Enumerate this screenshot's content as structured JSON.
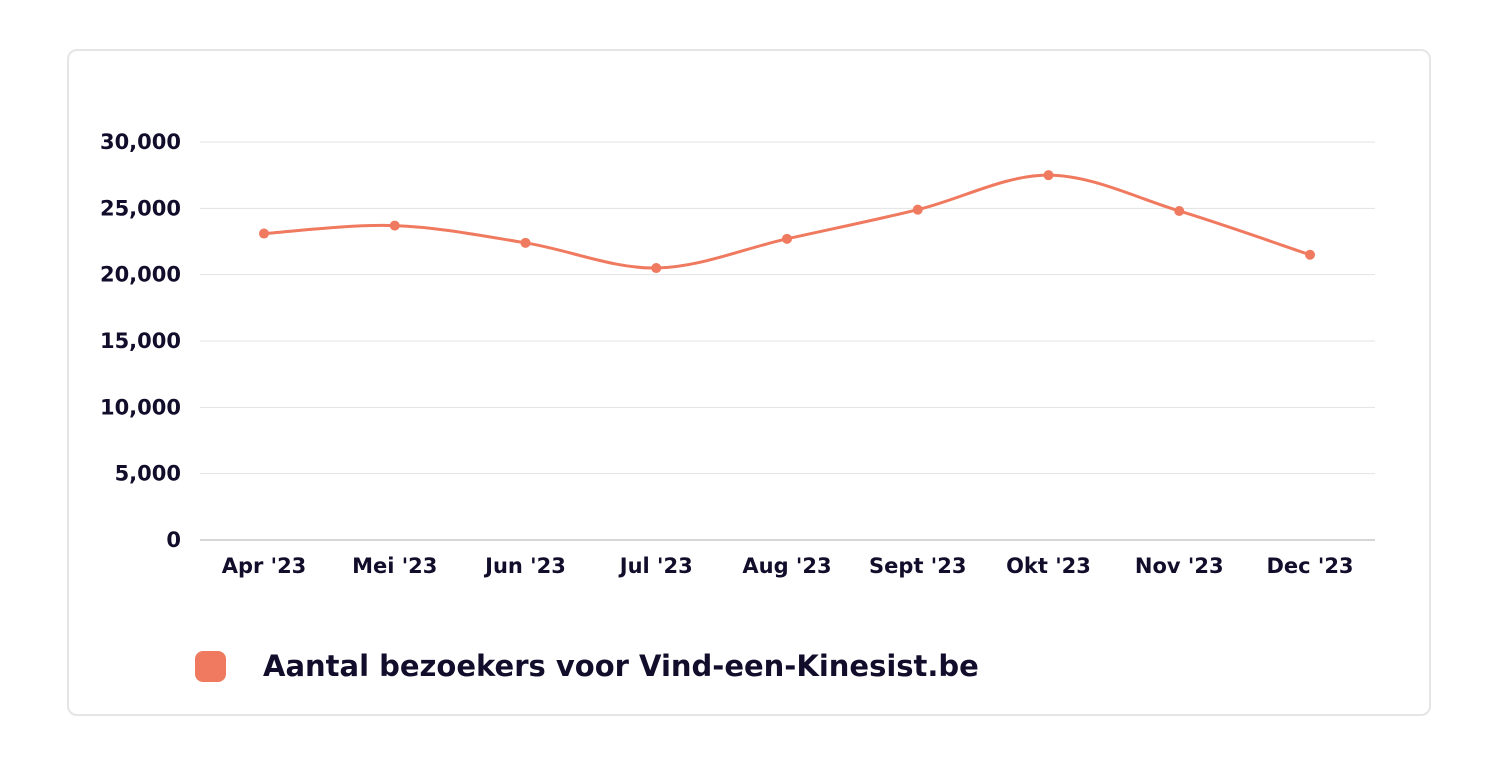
{
  "colors": {
    "series": "#ef7a5f",
    "text": "#120d2b",
    "grid": "#e3e3e3",
    "card_border": "#e5e5e5"
  },
  "chart_data": {
    "type": "line",
    "categories": [
      "Apr '23",
      "Mei '23",
      "Jun '23",
      "Jul '23",
      "Aug '23",
      "Sept '23",
      "Okt '23",
      "Nov '23",
      "Dec '23"
    ],
    "series": [
      {
        "name": "Aantal bezoekers voor Vind-een-Kinesist.be",
        "values": [
          23100,
          23700,
          22400,
          20500,
          22700,
          24900,
          27500,
          24800,
          21500
        ]
      }
    ],
    "yticks": [
      "0",
      "5,000",
      "10,000",
      "15,000",
      "20,000",
      "25,000",
      "30,000"
    ],
    "ylim": [
      0,
      30000
    ],
    "grid": true,
    "smooth": true,
    "legend_position": "bottom-left"
  }
}
